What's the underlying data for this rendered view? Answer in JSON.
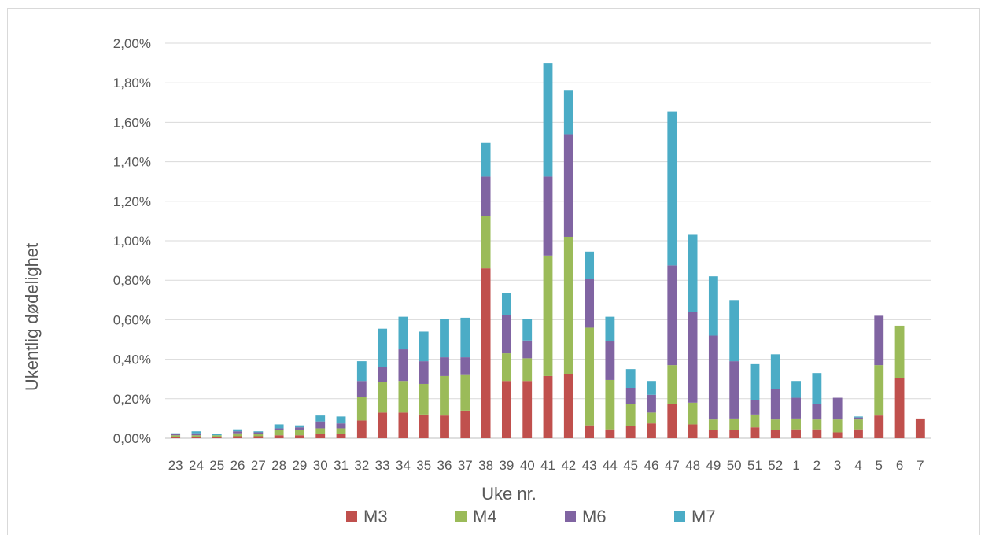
{
  "chart_data": {
    "type": "bar",
    "stacked": true,
    "title": "",
    "xlabel": "Uke nr.",
    "ylabel": "Ukentlig dødelighet",
    "ylim": [
      0,
      2.0
    ],
    "y_tick_labels": [
      "0,00%",
      "0,20%",
      "0,40%",
      "0,60%",
      "0,80%",
      "1,00%",
      "1,20%",
      "1,40%",
      "1,60%",
      "1,80%",
      "2,00%"
    ],
    "grid": true,
    "legend_position": "bottom",
    "categories": [
      "23",
      "24",
      "25",
      "26",
      "27",
      "28",
      "29",
      "30",
      "31",
      "32",
      "33",
      "34",
      "35",
      "36",
      "37",
      "38",
      "39",
      "40",
      "41",
      "42",
      "43",
      "44",
      "45",
      "46",
      "47",
      "48",
      "49",
      "50",
      "51",
      "52",
      "1",
      "2",
      "3",
      "4",
      "5",
      "6",
      "7"
    ],
    "series": [
      {
        "name": "M3",
        "color": "#c0504d",
        "values": [
          0.005,
          0.005,
          0.005,
          0.01,
          0.01,
          0.015,
          0.015,
          0.02,
          0.02,
          0.09,
          0.13,
          0.13,
          0.12,
          0.115,
          0.14,
          0.86,
          0.29,
          0.29,
          0.315,
          0.325,
          0.065,
          0.045,
          0.06,
          0.075,
          0.175,
          0.07,
          0.04,
          0.04,
          0.055,
          0.04,
          0.045,
          0.045,
          0.03,
          0.045,
          0.115,
          0.305,
          0.1
        ]
      },
      {
        "name": "M4",
        "color": "#9bbb59",
        "values": [
          0.01,
          0.01,
          0.01,
          0.015,
          0.01,
          0.025,
          0.025,
          0.03,
          0.03,
          0.12,
          0.155,
          0.16,
          0.155,
          0.2,
          0.18,
          0.265,
          0.14,
          0.115,
          0.61,
          0.695,
          0.495,
          0.25,
          0.115,
          0.055,
          0.195,
          0.11,
          0.055,
          0.06,
          0.065,
          0.055,
          0.055,
          0.05,
          0.065,
          0.05,
          0.255,
          0.265,
          0
        ]
      },
      {
        "name": "M6",
        "color": "#8064a2",
        "values": [
          0.005,
          0.01,
          0,
          0.01,
          0.01,
          0.01,
          0.015,
          0.035,
          0.025,
          0.08,
          0.075,
          0.16,
          0.115,
          0.095,
          0.09,
          0.2,
          0.195,
          0.09,
          0.4,
          0.52,
          0.245,
          0.195,
          0.08,
          0.09,
          0.505,
          0.46,
          0.425,
          0.29,
          0.075,
          0.155,
          0.105,
          0.08,
          0.11,
          0.01,
          0.25,
          0,
          0
        ]
      },
      {
        "name": "M7",
        "color": "#4bacc6",
        "values": [
          0.005,
          0.01,
          0.005,
          0.01,
          0.005,
          0.02,
          0.01,
          0.03,
          0.035,
          0.1,
          0.195,
          0.165,
          0.15,
          0.195,
          0.2,
          0.17,
          0.11,
          0.11,
          0.575,
          0.22,
          0.14,
          0.125,
          0.095,
          0.07,
          0.78,
          0.39,
          0.3,
          0.31,
          0.18,
          0.175,
          0.085,
          0.155,
          0,
          0.005,
          0,
          0,
          0
        ]
      }
    ]
  }
}
